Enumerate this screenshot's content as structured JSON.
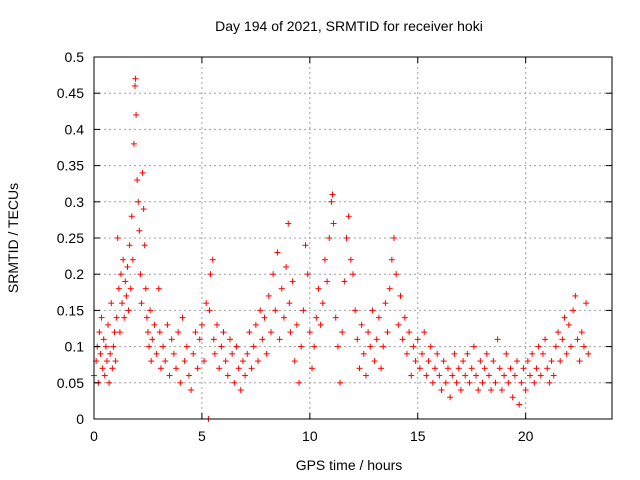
{
  "chart_data": {
    "type": "scatter",
    "title": "Day 194 of 2021, SRMTID for receiver hoki",
    "xlabel": "GPS time / hours",
    "ylabel": "SRMTID / TECUs",
    "xlim": [
      0,
      24
    ],
    "ylim": [
      0,
      0.5
    ],
    "xticks": [
      0,
      5,
      10,
      15,
      20
    ],
    "yticks": [
      0,
      0.05,
      0.1,
      0.15,
      0.2,
      0.25,
      0.3,
      0.35,
      0.4,
      0.45,
      0.5
    ],
    "grid": true,
    "marker": "+",
    "color": "#ff0000",
    "series": [
      {
        "name": "SRMTID",
        "points": [
          [
            0.0,
            0.06
          ],
          [
            0.1,
            0.08
          ],
          [
            0.15,
            0.1
          ],
          [
            0.2,
            0.05
          ],
          [
            0.25,
            0.12
          ],
          [
            0.3,
            0.09
          ],
          [
            0.35,
            0.14
          ],
          [
            0.4,
            0.07
          ],
          [
            0.45,
            0.11
          ],
          [
            0.5,
            0.06
          ],
          [
            0.55,
            0.1
          ],
          [
            0.6,
            0.08
          ],
          [
            0.65,
            0.13
          ],
          [
            0.7,
            0.05
          ],
          [
            0.75,
            0.09
          ],
          [
            0.8,
            0.16
          ],
          [
            0.85,
            0.07
          ],
          [
            0.9,
            0.1
          ],
          [
            0.95,
            0.12
          ],
          [
            1.0,
            0.08
          ],
          [
            1.05,
            0.14
          ],
          [
            1.1,
            0.25
          ],
          [
            1.15,
            0.18
          ],
          [
            1.2,
            0.12
          ],
          [
            1.25,
            0.2
          ],
          [
            1.3,
            0.16
          ],
          [
            1.35,
            0.22
          ],
          [
            1.4,
            0.14
          ],
          [
            1.45,
            0.19
          ],
          [
            1.5,
            0.17
          ],
          [
            1.55,
            0.21
          ],
          [
            1.6,
            0.15
          ],
          [
            1.65,
            0.24
          ],
          [
            1.7,
            0.18
          ],
          [
            1.75,
            0.28
          ],
          [
            1.8,
            0.22
          ],
          [
            1.85,
            0.38
          ],
          [
            1.9,
            0.46
          ],
          [
            1.92,
            0.47
          ],
          [
            1.95,
            0.42
          ],
          [
            2.0,
            0.33
          ],
          [
            2.05,
            0.3
          ],
          [
            2.1,
            0.26
          ],
          [
            2.15,
            0.2
          ],
          [
            2.2,
            0.16
          ],
          [
            2.25,
            0.34
          ],
          [
            2.3,
            0.29
          ],
          [
            2.35,
            0.24
          ],
          [
            2.4,
            0.18
          ],
          [
            2.45,
            0.14
          ],
          [
            2.5,
            0.12
          ],
          [
            2.55,
            0.1
          ],
          [
            2.6,
            0.15
          ],
          [
            2.65,
            0.08
          ],
          [
            2.7,
            0.11
          ],
          [
            2.8,
            0.13
          ],
          [
            2.9,
            0.09
          ],
          [
            3.0,
            0.18
          ],
          [
            3.05,
            0.12
          ],
          [
            3.1,
            0.07
          ],
          [
            3.2,
            0.1
          ],
          [
            3.3,
            0.08
          ],
          [
            3.4,
            0.13
          ],
          [
            3.5,
            0.06
          ],
          [
            3.6,
            0.11
          ],
          [
            3.7,
            0.09
          ],
          [
            3.8,
            0.07
          ],
          [
            3.9,
            0.12
          ],
          [
            4.0,
            0.05
          ],
          [
            4.1,
            0.14
          ],
          [
            4.2,
            0.08
          ],
          [
            4.3,
            0.1
          ],
          [
            4.4,
            0.06
          ],
          [
            4.5,
            0.04
          ],
          [
            4.6,
            0.09
          ],
          [
            4.7,
            0.12
          ],
          [
            4.8,
            0.07
          ],
          [
            4.9,
            0.11
          ],
          [
            5.0,
            0.13
          ],
          [
            5.1,
            0.08
          ],
          [
            5.2,
            0.16
          ],
          [
            5.3,
            0.0
          ],
          [
            5.35,
            0.15
          ],
          [
            5.4,
            0.2
          ],
          [
            5.5,
            0.22
          ],
          [
            5.55,
            0.11
          ],
          [
            5.6,
            0.09
          ],
          [
            5.7,
            0.13
          ],
          [
            5.8,
            0.07
          ],
          [
            5.9,
            0.1
          ],
          [
            6.0,
            0.12
          ],
          [
            6.1,
            0.08
          ],
          [
            6.2,
            0.06
          ],
          [
            6.3,
            0.11
          ],
          [
            6.4,
            0.09
          ],
          [
            6.5,
            0.05
          ],
          [
            6.6,
            0.1
          ],
          [
            6.7,
            0.07
          ],
          [
            6.8,
            0.04
          ],
          [
            6.9,
            0.08
          ],
          [
            7.0,
            0.06
          ],
          [
            7.1,
            0.09
          ],
          [
            7.2,
            0.12
          ],
          [
            7.3,
            0.07
          ],
          [
            7.4,
            0.1
          ],
          [
            7.5,
            0.13
          ],
          [
            7.6,
            0.08
          ],
          [
            7.7,
            0.15
          ],
          [
            7.8,
            0.11
          ],
          [
            7.9,
            0.14
          ],
          [
            8.0,
            0.09
          ],
          [
            8.1,
            0.17
          ],
          [
            8.2,
            0.12
          ],
          [
            8.3,
            0.2
          ],
          [
            8.4,
            0.15
          ],
          [
            8.5,
            0.23
          ],
          [
            8.6,
            0.11
          ],
          [
            8.7,
            0.18
          ],
          [
            8.8,
            0.14
          ],
          [
            8.9,
            0.21
          ],
          [
            9.0,
            0.27
          ],
          [
            9.05,
            0.16
          ],
          [
            9.1,
            0.12
          ],
          [
            9.2,
            0.19
          ],
          [
            9.3,
            0.08
          ],
          [
            9.4,
            0.13
          ],
          [
            9.5,
            0.05
          ],
          [
            9.6,
            0.1
          ],
          [
            9.7,
            0.15
          ],
          [
            9.8,
            0.24
          ],
          [
            9.9,
            0.2
          ],
          [
            10.0,
            0.12
          ],
          [
            10.1,
            0.07
          ],
          [
            10.2,
            0.1
          ],
          [
            10.3,
            0.14
          ],
          [
            10.4,
            0.18
          ],
          [
            10.5,
            0.13
          ],
          [
            10.6,
            0.16
          ],
          [
            10.7,
            0.22
          ],
          [
            10.8,
            0.19
          ],
          [
            10.9,
            0.25
          ],
          [
            11.0,
            0.3
          ],
          [
            11.05,
            0.31
          ],
          [
            11.1,
            0.27
          ],
          [
            11.2,
            0.14
          ],
          [
            11.3,
            0.1
          ],
          [
            11.4,
            0.05
          ],
          [
            11.5,
            0.12
          ],
          [
            11.6,
            0.19
          ],
          [
            11.7,
            0.25
          ],
          [
            11.8,
            0.28
          ],
          [
            11.9,
            0.22
          ],
          [
            12.0,
            0.2
          ],
          [
            12.1,
            0.15
          ],
          [
            12.2,
            0.11
          ],
          [
            12.3,
            0.07
          ],
          [
            12.4,
            0.13
          ],
          [
            12.5,
            0.09
          ],
          [
            12.6,
            0.06
          ],
          [
            12.7,
            0.12
          ],
          [
            12.8,
            0.1
          ],
          [
            12.9,
            0.15
          ],
          [
            13.0,
            0.08
          ],
          [
            13.1,
            0.11
          ],
          [
            13.2,
            0.14
          ],
          [
            13.3,
            0.07
          ],
          [
            13.4,
            0.1
          ],
          [
            13.5,
            0.16
          ],
          [
            13.6,
            0.12
          ],
          [
            13.7,
            0.18
          ],
          [
            13.8,
            0.22
          ],
          [
            13.9,
            0.25
          ],
          [
            14.0,
            0.2
          ],
          [
            14.1,
            0.13
          ],
          [
            14.2,
            0.17
          ],
          [
            14.3,
            0.11
          ],
          [
            14.4,
            0.14
          ],
          [
            14.5,
            0.09
          ],
          [
            14.6,
            0.12
          ],
          [
            14.7,
            0.06
          ],
          [
            14.8,
            0.1
          ],
          [
            14.9,
            0.08
          ],
          [
            15.0,
            0.11
          ],
          [
            15.1,
            0.07
          ],
          [
            15.2,
            0.09
          ],
          [
            15.3,
            0.12
          ],
          [
            15.4,
            0.06
          ],
          [
            15.5,
            0.08
          ],
          [
            15.6,
            0.1
          ],
          [
            15.7,
            0.05
          ],
          [
            15.8,
            0.07
          ],
          [
            15.9,
            0.09
          ],
          [
            16.0,
            0.06
          ],
          [
            16.1,
            0.04
          ],
          [
            16.2,
            0.08
          ],
          [
            16.3,
            0.05
          ],
          [
            16.4,
            0.07
          ],
          [
            16.5,
            0.03
          ],
          [
            16.6,
            0.06
          ],
          [
            16.7,
            0.09
          ],
          [
            16.8,
            0.05
          ],
          [
            16.9,
            0.07
          ],
          [
            17.0,
            0.04
          ],
          [
            17.1,
            0.08
          ],
          [
            17.2,
            0.06
          ],
          [
            17.3,
            0.09
          ],
          [
            17.4,
            0.05
          ],
          [
            17.5,
            0.07
          ],
          [
            17.6,
            0.1
          ],
          [
            17.7,
            0.06
          ],
          [
            17.8,
            0.04
          ],
          [
            17.9,
            0.08
          ],
          [
            18.0,
            0.05
          ],
          [
            18.1,
            0.07
          ],
          [
            18.2,
            0.09
          ],
          [
            18.3,
            0.06
          ],
          [
            18.4,
            0.04
          ],
          [
            18.5,
            0.08
          ],
          [
            18.6,
            0.05
          ],
          [
            18.7,
            0.11
          ],
          [
            18.8,
            0.07
          ],
          [
            18.9,
            0.04
          ],
          [
            19.0,
            0.06
          ],
          [
            19.1,
            0.09
          ],
          [
            19.2,
            0.05
          ],
          [
            19.3,
            0.07
          ],
          [
            19.4,
            0.03
          ],
          [
            19.5,
            0.06
          ],
          [
            19.6,
            0.08
          ],
          [
            19.7,
            0.02
          ],
          [
            19.8,
            0.05
          ],
          [
            19.9,
            0.07
          ],
          [
            20.0,
            0.04
          ],
          [
            20.1,
            0.08
          ],
          [
            20.2,
            0.06
          ],
          [
            20.3,
            0.09
          ],
          [
            20.4,
            0.05
          ],
          [
            20.5,
            0.07
          ],
          [
            20.6,
            0.1
          ],
          [
            20.7,
            0.06
          ],
          [
            20.8,
            0.09
          ],
          [
            20.9,
            0.11
          ],
          [
            21.0,
            0.07
          ],
          [
            21.1,
            0.05
          ],
          [
            21.2,
            0.08
          ],
          [
            21.3,
            0.06
          ],
          [
            21.4,
            0.1
          ],
          [
            21.5,
            0.12
          ],
          [
            21.6,
            0.08
          ],
          [
            21.7,
            0.11
          ],
          [
            21.8,
            0.14
          ],
          [
            21.9,
            0.09
          ],
          [
            22.0,
            0.13
          ],
          [
            22.1,
            0.1
          ],
          [
            22.2,
            0.15
          ],
          [
            22.3,
            0.17
          ],
          [
            22.4,
            0.11
          ],
          [
            22.5,
            0.08
          ],
          [
            22.6,
            0.12
          ],
          [
            22.7,
            0.1
          ],
          [
            22.8,
            0.16
          ],
          [
            22.9,
            0.09
          ]
        ]
      }
    ]
  }
}
